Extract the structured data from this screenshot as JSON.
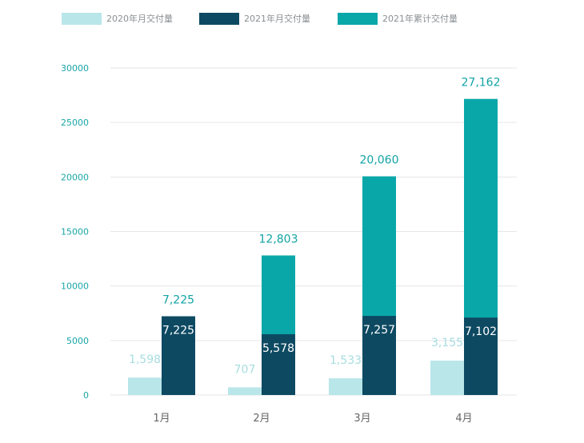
{
  "chart_data": {
    "type": "bar",
    "categories": [
      "1月",
      "2月",
      "3月",
      "4月"
    ],
    "series": [
      {
        "name": "2020年月交付量",
        "color": "#b9e6e9",
        "values": [
          1598,
          707,
          1533,
          3155
        ],
        "labels": [
          "1,598",
          "707",
          "1,533",
          "3,155"
        ]
      },
      {
        "name": "2021年月交付量",
        "color": "#0d4a62",
        "values": [
          7225,
          5578,
          7257,
          7102
        ],
        "labels": [
          "7,225",
          "5,578",
          "7,257",
          "7,102"
        ]
      },
      {
        "name": "2021年累计交付量",
        "color": "#0aa7a9",
        "values": [
          7225,
          12803,
          20060,
          27162
        ],
        "labels": [
          "7,225",
          "12,803",
          "20,060",
          "27,162"
        ]
      }
    ],
    "yticks": [
      "0",
      "5000",
      "10000",
      "15000",
      "20000",
      "25000",
      "30000"
    ],
    "ylim": [
      0,
      30000
    ],
    "grid": true,
    "legend": "top",
    "colors": {
      "tick_y": "#1aa6a8",
      "tick_x": "#666666",
      "grid": "#e6e6e6",
      "label_light": "#a8dde0",
      "label_accent": "#13a3a5",
      "label_inside": "#ffffff"
    }
  }
}
